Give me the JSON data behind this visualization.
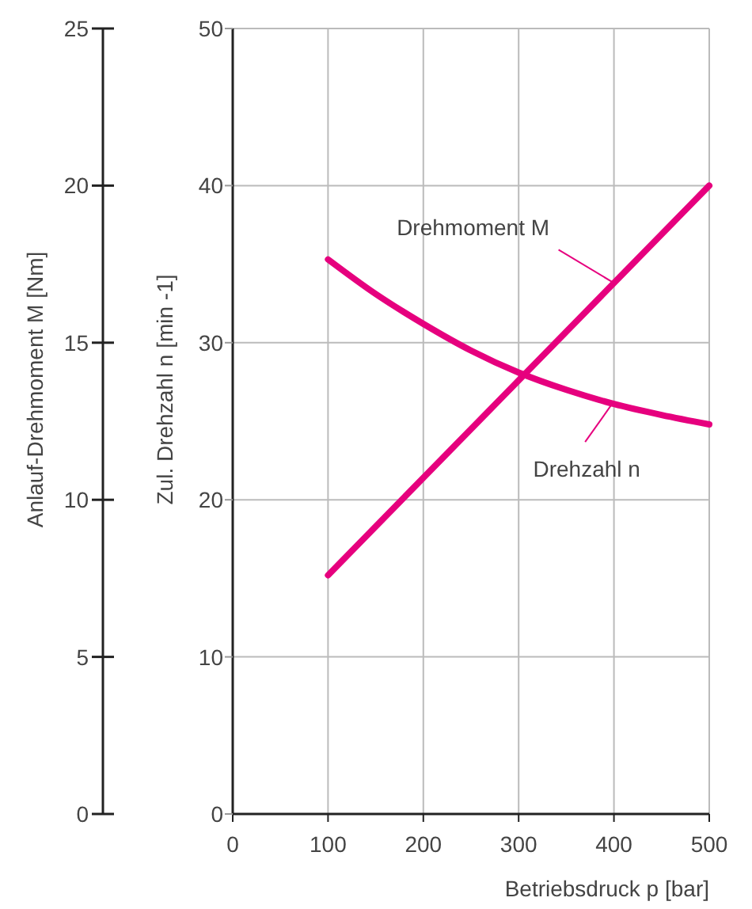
{
  "chart_data": {
    "type": "line",
    "xlabel": "Betriebsdruck p [bar]",
    "ylabel": "Zul. Drehzahl n [min -1]",
    "y2label": "Anlauf-Drehmoment M [Nm]",
    "xlim": [
      0,
      500
    ],
    "xticks": [
      0,
      100,
      200,
      300,
      400,
      500
    ],
    "ylim": [
      0,
      50
    ],
    "yticks": [
      0,
      10,
      20,
      30,
      40,
      50
    ],
    "y2lim": [
      0,
      25
    ],
    "y2ticks": [
      0,
      5,
      10,
      15,
      20,
      25
    ],
    "grid": true,
    "marker": "none",
    "line_style": "solid",
    "series": [
      {
        "color": "#e6007e",
        "axis": "y2",
        "x": [
          100,
          500
        ],
        "values": [
          7.6,
          20.0
        ]
      },
      {
        "color": "#e6007e",
        "axis": "y",
        "x": [
          100,
          150,
          200,
          250,
          300,
          350,
          400,
          450,
          500
        ],
        "values": [
          35.3,
          33.1,
          31.2,
          29.5,
          28.1,
          27.0,
          26.1,
          25.4,
          24.8
        ]
      }
    ],
    "annotations": [
      {
        "text": "Drehmoment M",
        "x": 400,
        "y": 33.8
      },
      {
        "text": "Drehzahl n",
        "x": 398,
        "y": 26.1
      }
    ]
  }
}
